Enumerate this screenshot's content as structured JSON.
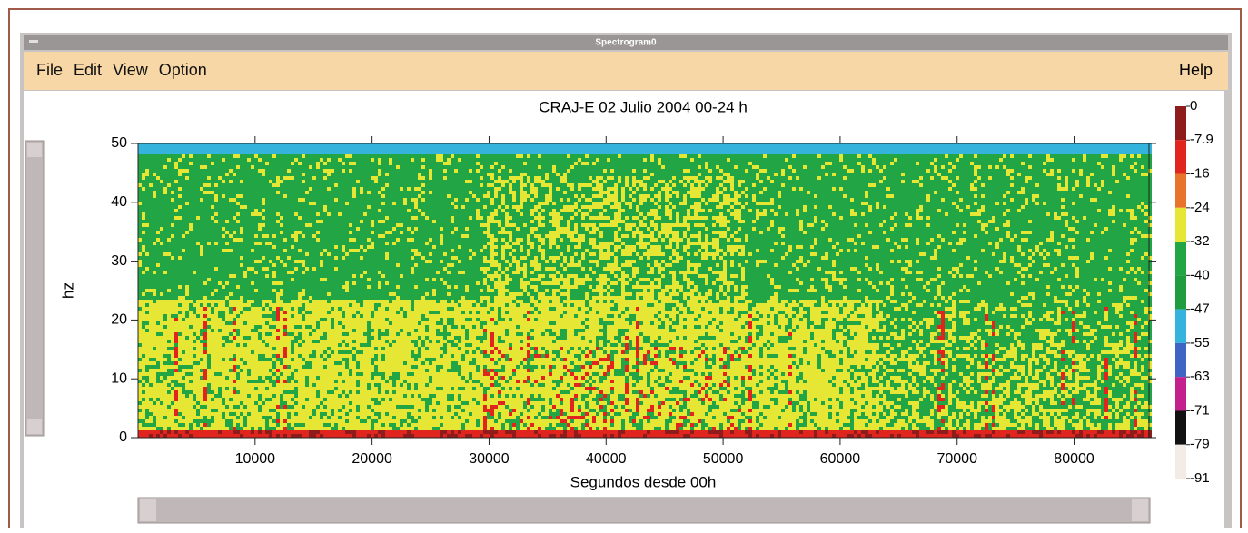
{
  "window": {
    "title": "Spectrogram0",
    "menu": [
      "File",
      "Edit",
      "View",
      "Option"
    ],
    "help": "Help"
  },
  "chart_data": {
    "type": "heatmap",
    "title": "CRAJ-E 02 Julio 2004 00-24 h",
    "x_label": "Segundos desde 00h",
    "y_label": "hz",
    "xlim": [
      0,
      86400
    ],
    "xticks": [
      10000,
      20000,
      30000,
      40000,
      50000,
      60000,
      70000,
      80000
    ],
    "ylim": [
      0,
      50
    ],
    "yticks": [
      0,
      10,
      20,
      30,
      40,
      50
    ],
    "colorbar": {
      "ticks": [
        0,
        -7.9,
        -16,
        -24,
        -32,
        -40,
        -47,
        -55,
        -63,
        -71,
        -79,
        -91
      ],
      "colors": [
        "#8e1c1c",
        "#e0241e",
        "#e8742c",
        "#e6e634",
        "#22a544",
        "#1f9c40",
        "#34b4dc",
        "#4064c4",
        "#c4208c",
        "#111111",
        "#f2ebe6"
      ]
    }
  }
}
